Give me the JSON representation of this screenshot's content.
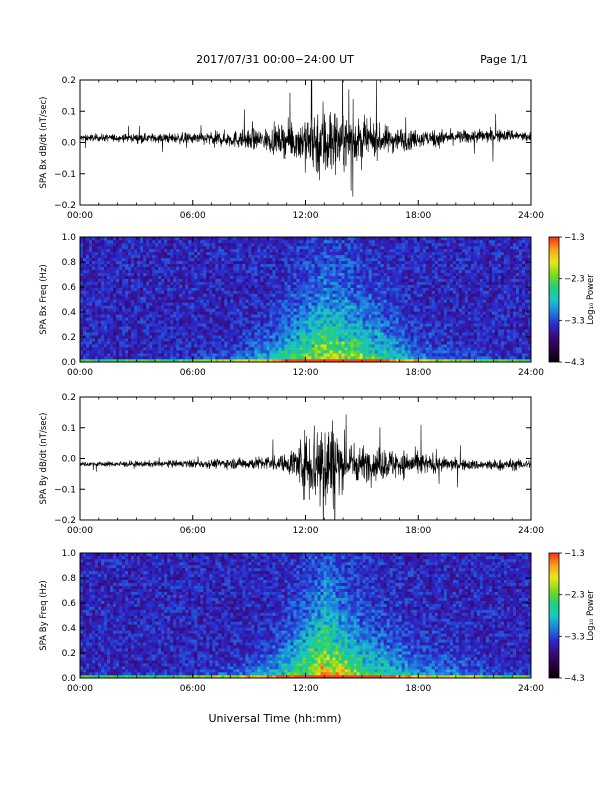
{
  "header": {
    "title": "2017/07/31  00:00−24:00 UT",
    "page": "Page 1/1"
  },
  "xlabel": "Universal Time (hh:mm)",
  "colors": {
    "trace": "#000000",
    "colormap": [
      "#000000",
      "#2a003f",
      "#3a0a7a",
      "#2b2ad0",
      "#1f7fe0",
      "#19c8c8",
      "#22d07a",
      "#7edc1a",
      "#e8e81a",
      "#f6a41a",
      "#ff2a1a"
    ]
  },
  "chart_data": [
    {
      "type": "line",
      "ylabel": "SPA Bx dB/dt (nT/sec)",
      "xlim": [
        0,
        24
      ],
      "ylim": [
        -0.2,
        0.2
      ],
      "xticks": [
        "00:00",
        "06:00",
        "12:00",
        "18:00",
        "24:00"
      ],
      "yticks": [
        "0.2",
        "0.1",
        "0.0",
        "−0.1",
        "−0.2"
      ],
      "series": [
        {
          "x": [
            0,
            3,
            6,
            8,
            10,
            11,
            12,
            12.5,
            13,
            13.5,
            14,
            15,
            16,
            17,
            18,
            19,
            20,
            21,
            22,
            23,
            24
          ],
          "amp": [
            0.012,
            0.014,
            0.02,
            0.028,
            0.04,
            0.055,
            0.09,
            0.12,
            0.15,
            0.12,
            0.09,
            0.07,
            0.05,
            0.042,
            0.03,
            0.03,
            0.022,
            0.025,
            0.022,
            0.02,
            0.018
          ],
          "baseline": [
            0.015,
            0.015,
            0.013,
            0.011,
            0.008,
            0.007,
            0.004,
            0.003,
            0.003,
            0.004,
            0.006,
            0.007,
            0.008,
            0.01,
            0.012,
            0.014,
            0.017,
            0.019,
            0.021,
            0.024,
            0.015
          ]
        }
      ]
    },
    {
      "type": "heatmap",
      "ylabel": "SPA Bx Freq (Hz)",
      "xlim": [
        0,
        24
      ],
      "ylim": [
        0.0,
        1.0
      ],
      "xticks": [
        "00:00",
        "06:00",
        "12:00",
        "18:00",
        "24:00"
      ],
      "yticks": [
        "1.0",
        "0.8",
        "0.6",
        "0.4",
        "0.2",
        "0.0"
      ],
      "colorbar": {
        "label": "Log₁₀ Power",
        "ticks": [
          "−1.3",
          "−2.3",
          "−3.3",
          "−4.3"
        ],
        "range": [
          -4.3,
          -1.3
        ]
      },
      "activity": {
        "time": [
          0,
          4,
          6,
          8,
          10,
          11,
          12,
          13,
          14,
          15,
          16,
          17,
          18,
          20,
          22,
          24
        ],
        "level": [
          0.05,
          0.07,
          0.12,
          0.2,
          0.35,
          0.5,
          0.65,
          0.8,
          0.75,
          0.65,
          0.5,
          0.35,
          0.25,
          0.15,
          0.1,
          0.08
        ],
        "extent_hz": [
          0.05,
          0.05,
          0.06,
          0.1,
          0.25,
          0.38,
          0.5,
          0.62,
          0.55,
          0.48,
          0.45,
          0.3,
          0.2,
          0.12,
          0.08,
          0.06
        ]
      }
    },
    {
      "type": "line",
      "ylabel": "SPA By dB/dt (nT/sec)",
      "xlim": [
        0,
        24
      ],
      "ylim": [
        -0.2,
        0.2
      ],
      "xticks": [
        "00:00",
        "06:00",
        "12:00",
        "18:00",
        "24:00"
      ],
      "yticks": [
        "0.2",
        "0.1",
        "0.0",
        "−0.1",
        "−0.2"
      ],
      "series": [
        {
          "x": [
            0,
            3,
            6,
            8,
            10,
            11,
            12,
            12.5,
            13,
            13.5,
            14,
            15,
            16,
            17,
            18,
            19,
            20,
            21,
            22,
            23,
            24
          ],
          "amp": [
            0.008,
            0.01,
            0.014,
            0.018,
            0.025,
            0.03,
            0.11,
            0.16,
            0.19,
            0.15,
            0.09,
            0.06,
            0.055,
            0.05,
            0.04,
            0.03,
            0.02,
            0.018,
            0.02,
            0.02,
            0.015
          ],
          "baseline": [
            -0.018,
            -0.018,
            -0.017,
            -0.016,
            -0.015,
            -0.015,
            -0.016,
            -0.016,
            -0.015,
            -0.015,
            -0.015,
            -0.016,
            -0.017,
            -0.018,
            -0.018,
            -0.019,
            -0.02,
            -0.021,
            -0.022,
            -0.02,
            -0.018
          ]
        }
      ]
    },
    {
      "type": "heatmap",
      "ylabel": "SPA By Freq (Hz)",
      "xlim": [
        0,
        24
      ],
      "ylim": [
        0.0,
        1.0
      ],
      "xticks": [
        "00:00",
        "06:00",
        "12:00",
        "18:00",
        "24:00"
      ],
      "yticks": [
        "1.0",
        "0.8",
        "0.6",
        "0.4",
        "0.2",
        "0.0"
      ],
      "colorbar": {
        "label": "Log₁₀ Power",
        "ticks": [
          "−1.3",
          "−2.3",
          "−3.3",
          "−4.3"
        ],
        "range": [
          -4.3,
          -1.3
        ]
      },
      "activity": {
        "time": [
          0,
          4,
          6,
          8,
          10,
          11,
          12,
          13,
          14,
          15,
          16,
          17,
          18,
          20,
          22,
          24
        ],
        "level": [
          0.07,
          0.08,
          0.12,
          0.2,
          0.35,
          0.5,
          0.7,
          0.9,
          0.8,
          0.6,
          0.45,
          0.4,
          0.3,
          0.25,
          0.12,
          0.08
        ],
        "extent_hz": [
          0.06,
          0.06,
          0.07,
          0.1,
          0.22,
          0.35,
          0.55,
          0.75,
          0.6,
          0.45,
          0.4,
          0.35,
          0.25,
          0.2,
          0.1,
          0.06
        ]
      }
    }
  ]
}
